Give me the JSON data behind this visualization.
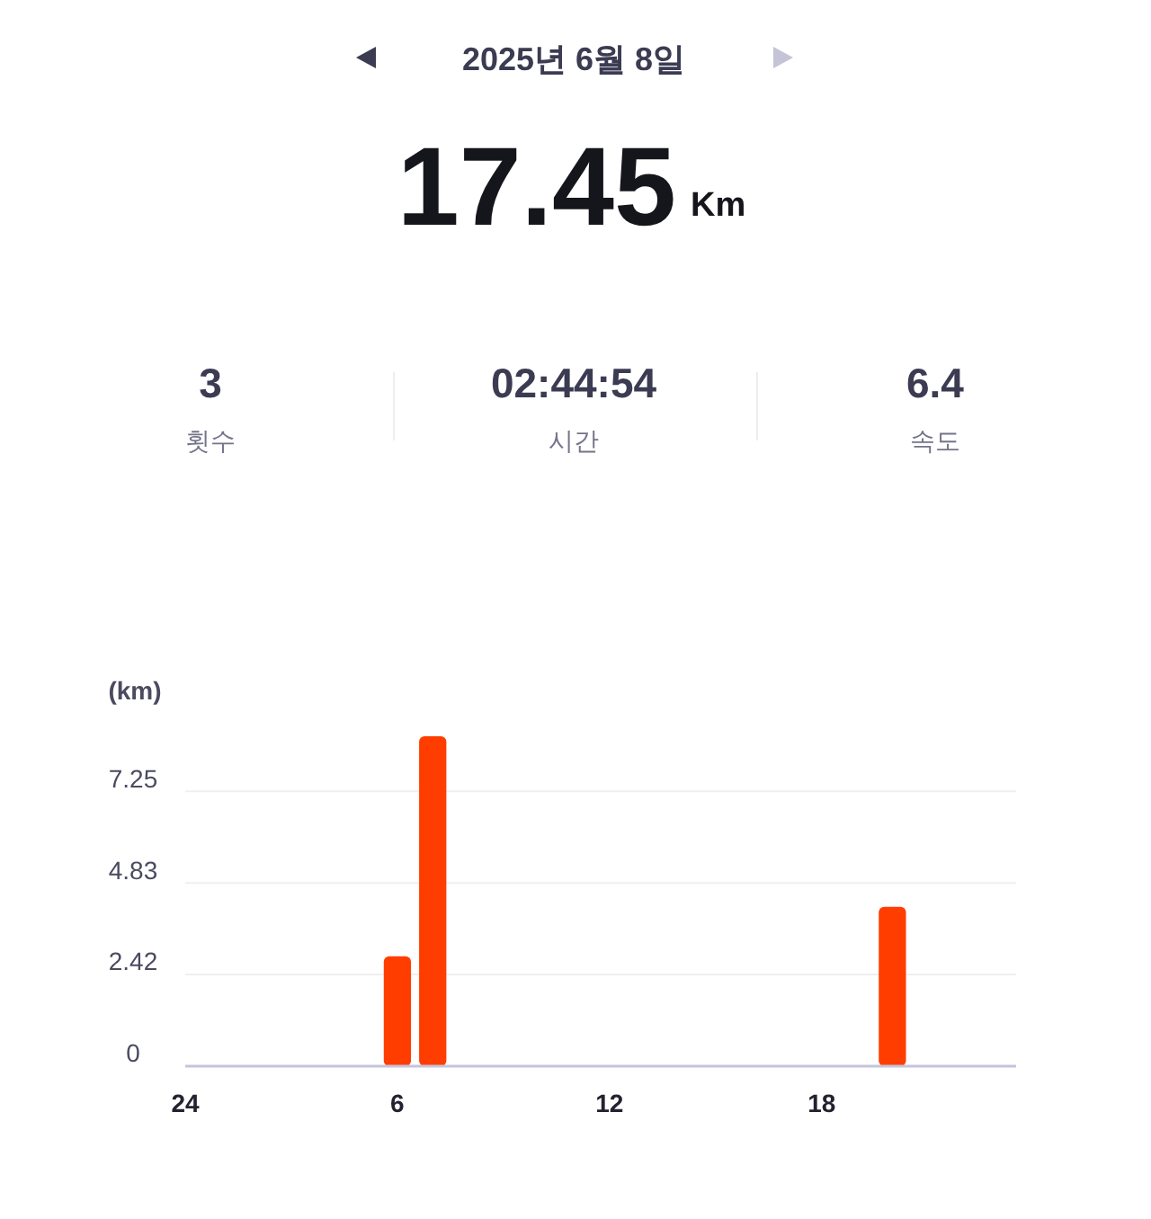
{
  "chart_data": {
    "type": "bar",
    "title": "2025년 6월 8일",
    "annotations": [
      "17.45",
      "Km",
      "3",
      "횟수",
      "02:44:54",
      "시간",
      "6.4",
      "속도"
    ],
    "ylabel": "(km)",
    "categories": [
      "24",
      null,
      null,
      null,
      null,
      null,
      "6",
      null,
      null,
      null,
      null,
      null,
      "12",
      null,
      null,
      null,
      null,
      null,
      "18",
      null,
      null,
      null,
      null,
      null
    ],
    "values": [
      null,
      null,
      null,
      null,
      null,
      null,
      2.9,
      8.7,
      null,
      null,
      null,
      null,
      null,
      null,
      null,
      null,
      null,
      null,
      null,
      null,
      4.2,
      null,
      null,
      null
    ],
    "color": "#ff3d00",
    "ylim": [
      0,
      8.7
    ],
    "yticks": [
      0,
      2.42,
      4.83,
      7.25
    ],
    "grid": "y"
  }
}
